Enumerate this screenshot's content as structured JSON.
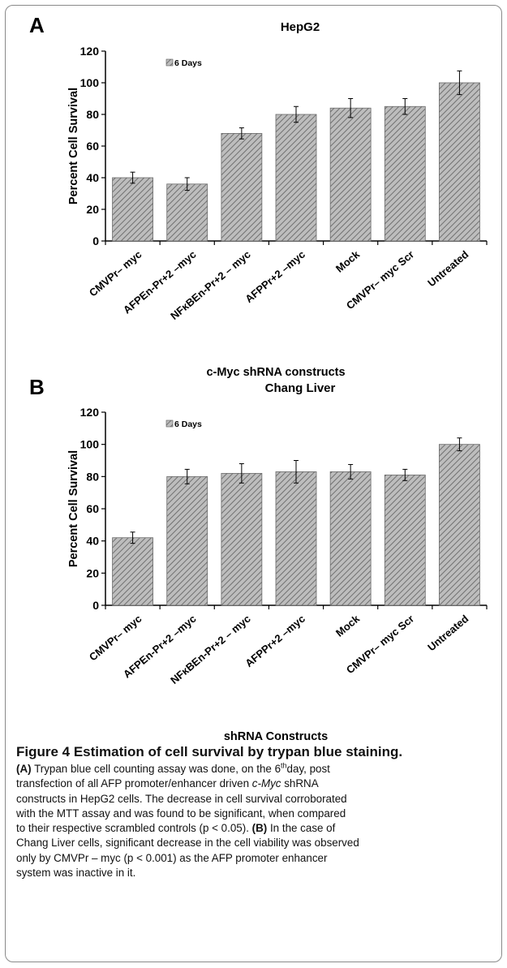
{
  "chart_data": [
    {
      "type": "bar",
      "panel_label": "A",
      "title": "HepG2",
      "xlabel": "c-Myc shRNA constructs",
      "ylabel": "Percent Cell Survival",
      "ylim": [
        0,
        120
      ],
      "yticks": [
        "0",
        "20",
        "40",
        "60",
        "80",
        "100",
        "120"
      ],
      "legend": "6 Days",
      "legend_position": "top-left",
      "categories": [
        "CMVPr– myc",
        "AFPEn-Pr+2 –myc",
        "NFκBEn-Pr+2 – myc",
        "AFPPr+2 –myc",
        "Mock",
        "CMVPr– myc Scr",
        "Untreated"
      ],
      "series": [
        {
          "name": "6 Days",
          "values": [
            40,
            36,
            68,
            80,
            84,
            85,
            100
          ],
          "errors": [
            3.5,
            4,
            3.5,
            5,
            6,
            5,
            7.5
          ]
        }
      ],
      "grid": false,
      "bar_fill": "hatched"
    },
    {
      "type": "bar",
      "panel_label": "B",
      "title": "Chang Liver",
      "xlabel": "shRNA Constructs",
      "ylabel": "Percent Cell Survival",
      "ylim": [
        0,
        120
      ],
      "yticks": [
        "0",
        "20",
        "40",
        "60",
        "80",
        "100",
        "120"
      ],
      "legend": "6 Days",
      "legend_position": "top-left",
      "categories": [
        "CMVPr– myc",
        "AFPEn-Pr+2 –myc",
        "NFκBEn-Pr+2 – myc",
        "AFPPr+2 –myc",
        "Mock",
        "CMVPr– myc Scr",
        "Untreated"
      ],
      "series": [
        {
          "name": "6 Days",
          "values": [
            42,
            80,
            82,
            83,
            83,
            81,
            100
          ],
          "errors": [
            3.5,
            4.5,
            6,
            7,
            4.5,
            3.5,
            4
          ]
        }
      ],
      "grid": false,
      "bar_fill": "hatched"
    }
  ],
  "caption": {
    "title": "Figure 4 Estimation of cell survival by trypan blue staining.",
    "lines": [
      "<b>(A)</b> Trypan blue cell counting assay was done, on the 6<sup>th</sup>day, post",
      "transfection of all AFP promoter/enhancer driven <i>c-Myc</i> shRNA",
      "constructs in HepG2 cells. The decrease in cell survival corroborated",
      "with the MTT assay and was found to be significant, when compared",
      "to their respective scrambled controls (p &lt; 0.05). <b>(B)</b> In the case of",
      "Chang Liver cells, significant decrease in the cell viability was observed",
      "only by CMVPr – myc (p &lt; 0.001) as the AFP promoter enhancer",
      "system was inactive in it."
    ]
  },
  "colors": {
    "bar_fill": "#bdbdbd",
    "bar_hatch": "#6f6f6f",
    "axis": "#000000",
    "frame": "#8a8a8a"
  }
}
